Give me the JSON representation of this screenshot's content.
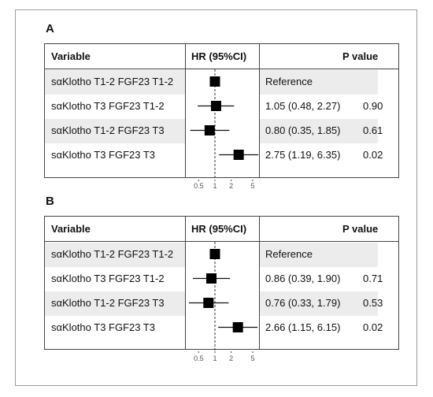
{
  "chart_data": [
    {
      "type": "forest",
      "panel_label": "A",
      "columns": {
        "variable": "Variable",
        "hr": "HR (95%CI)",
        "p": "P value"
      },
      "x_scale": "log",
      "x_ticks": [
        0.5,
        1,
        2,
        5
      ],
      "x_tick_labels": [
        "0.5",
        "1",
        "2",
        "5"
      ],
      "reference_line": 1,
      "rows": [
        {
          "label": "sαKlotho T1-2 FGF23 T1-2",
          "hr": 1.0,
          "lo": null,
          "hi": null,
          "text": "Reference",
          "p": ""
        },
        {
          "label": "sαKlotho T3 FGF23 T1-2",
          "hr": 1.05,
          "lo": 0.48,
          "hi": 2.27,
          "text": "1.05 (0.48, 2.27)",
          "p": "0.90"
        },
        {
          "label": "sαKlotho T1-2 FGF23 T3",
          "hr": 0.8,
          "lo": 0.35,
          "hi": 1.85,
          "text": "0.80 (0.35, 1.85)",
          "p": "0.61"
        },
        {
          "label": "sαKlotho T3 FGF23 T3",
          "hr": 2.75,
          "lo": 1.19,
          "hi": 6.35,
          "text": "2.75 (1.19, 6.35)",
          "p": "0.02"
        }
      ]
    },
    {
      "type": "forest",
      "panel_label": "B",
      "columns": {
        "variable": "Variable",
        "hr": "HR (95%CI)",
        "p": "P value"
      },
      "x_scale": "log",
      "x_ticks": [
        0.5,
        1,
        2,
        5
      ],
      "x_tick_labels": [
        "0.5",
        "1",
        "2",
        "5"
      ],
      "reference_line": 1,
      "rows": [
        {
          "label": "sαKlotho T1-2 FGF23 T1-2",
          "hr": 1.0,
          "lo": null,
          "hi": null,
          "text": "Reference",
          "p": ""
        },
        {
          "label": "sαKlotho T3 FGF23 T1-2",
          "hr": 0.86,
          "lo": 0.39,
          "hi": 1.9,
          "text": "0.86 (0.39, 1.90)",
          "p": "0.71"
        },
        {
          "label": "sαKlotho T1-2 FGF23 T3",
          "hr": 0.76,
          "lo": 0.33,
          "hi": 1.79,
          "text": "0.76 (0.33, 1.79)",
          "p": "0.53"
        },
        {
          "label": "sαKlotho T3 FGF23 T3",
          "hr": 2.66,
          "lo": 1.15,
          "hi": 6.15,
          "text": "2.66 (1.15, 6.15)",
          "p": "0.02"
        }
      ]
    }
  ]
}
